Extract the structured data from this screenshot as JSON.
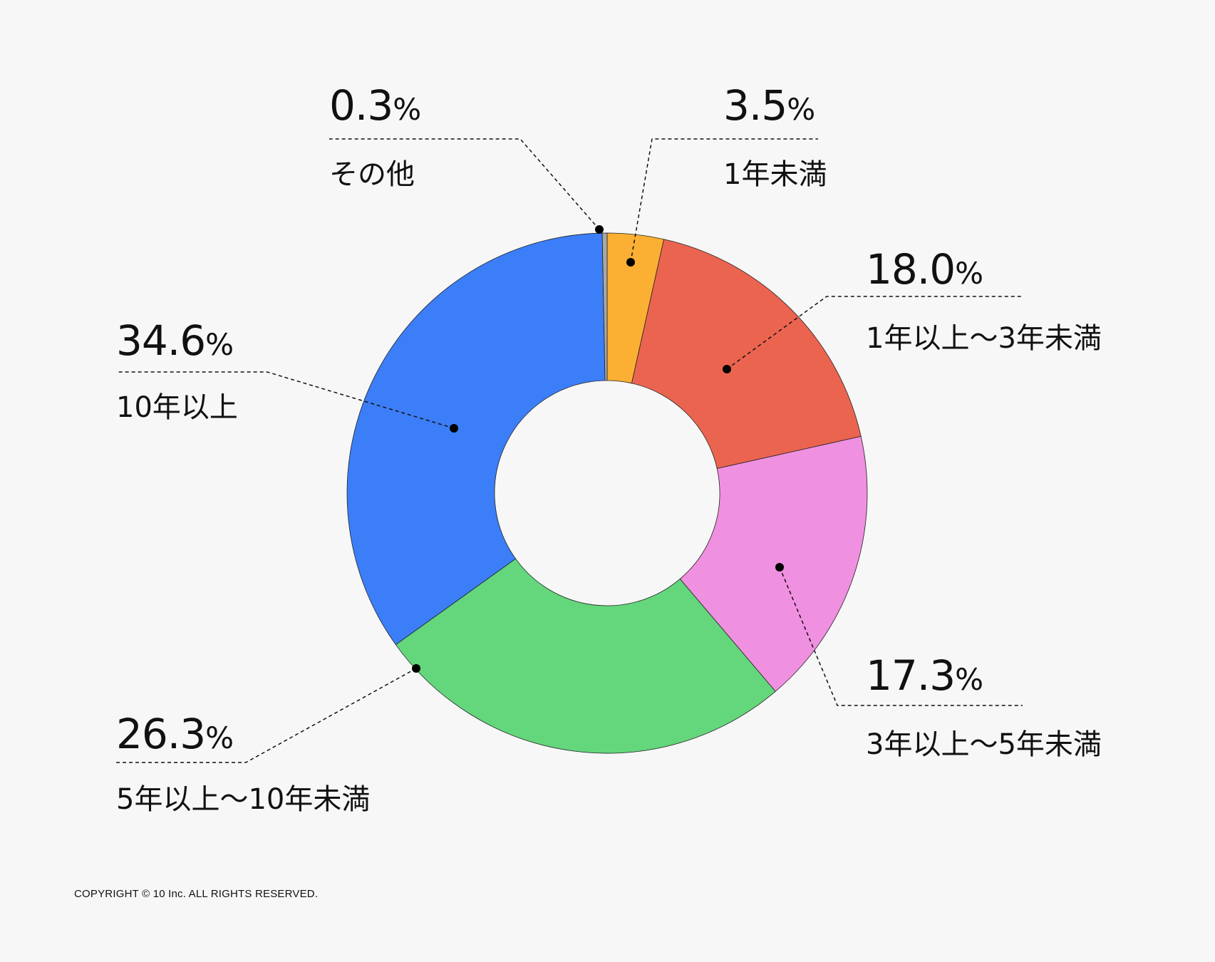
{
  "chart_data": {
    "type": "pie",
    "donut": true,
    "start_angle_deg": 0,
    "direction": "clockwise",
    "slices": [
      {
        "key": "lt1",
        "label": "1年未満",
        "value": 3.5,
        "value_text": "3.5",
        "color": "#fbb034"
      },
      {
        "key": "y1to3",
        "label": "1年以上〜3年未満",
        "value": 18.0,
        "value_text": "18.0",
        "color": "#eb6450"
      },
      {
        "key": "y3to5",
        "label": "3年以上〜5年未満",
        "value": 17.3,
        "value_text": "17.3",
        "color": "#f090e0"
      },
      {
        "key": "y5to10",
        "label": "5年以上〜10年未満",
        "value": 26.3,
        "value_text": "26.3",
        "color": "#64d67c"
      },
      {
        "key": "y10plus",
        "label": "10年以上",
        "value": 34.6,
        "value_text": "34.6",
        "color": "#3b7ef7"
      },
      {
        "key": "other",
        "label": "その他",
        "value": 0.3,
        "value_text": "0.3",
        "color": "#a8a8a8"
      }
    ],
    "unit": "%"
  },
  "footer": {
    "copyright": "COPYRIGHT © 10 Inc. ALL RIGHTS RESERVED."
  }
}
